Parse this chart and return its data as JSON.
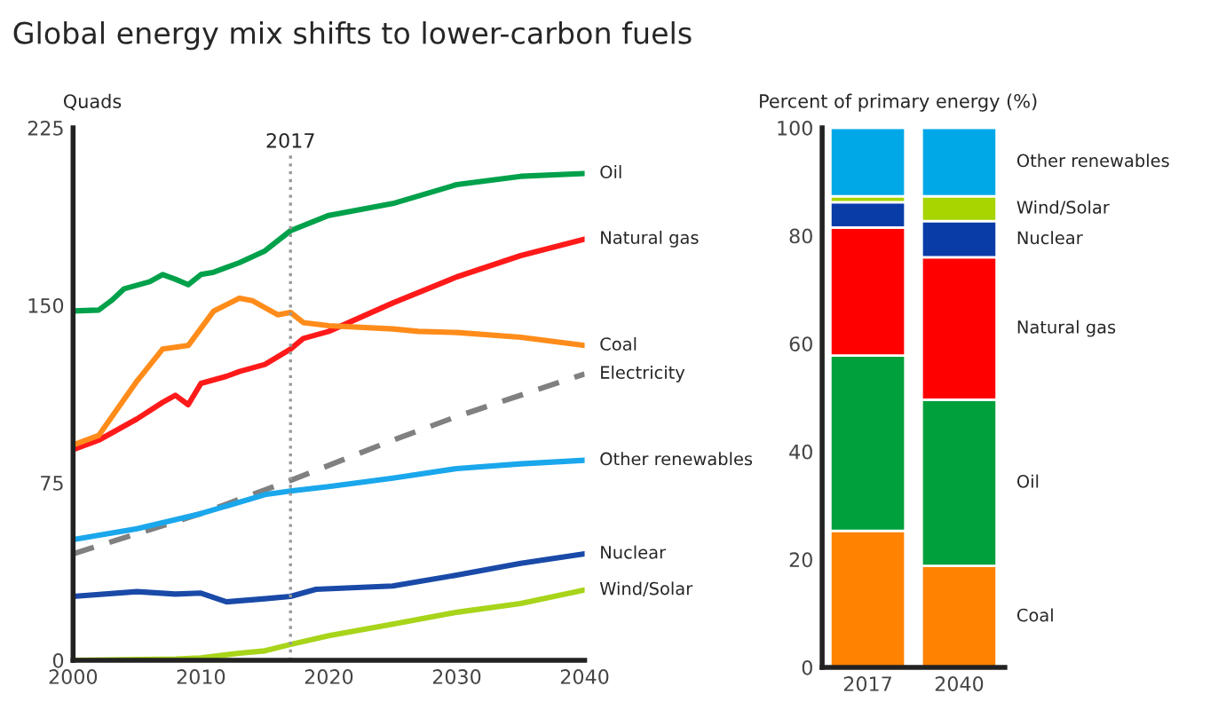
{
  "chart_data": [
    {
      "type": "line",
      "title": "Global energy mix shifts to lower-carbon fuels",
      "ylabel": "Quads",
      "xlim": [
        2000,
        2040
      ],
      "xticks": [
        2000,
        2010,
        2020,
        2030,
        2040
      ],
      "ylim": [
        0,
        225
      ],
      "yticks": [
        0,
        75,
        150,
        225
      ],
      "grid": false,
      "legend": false,
      "line_style": "solid",
      "ref_lines": [
        {
          "axis": "x",
          "value": 2017,
          "label": "2017",
          "color": "#999999",
          "line_style": "dotted"
        }
      ],
      "series": [
        {
          "name": "Oil",
          "color": "#00a14b",
          "x": [
            2000,
            2002,
            2003,
            2004,
            2006,
            2007,
            2008,
            2009,
            2010,
            2011,
            2013,
            2015,
            2017,
            2020,
            2025,
            2030,
            2035,
            2040
          ],
          "values": [
            147.6,
            148,
            152,
            157,
            160,
            163,
            161,
            158.7,
            163,
            164,
            168,
            173,
            181.5,
            188,
            193,
            201,
            204.5,
            205.7
          ]
        },
        {
          "name": "Natural gas",
          "color": "#ff1a1a",
          "x": [
            2000,
            2002,
            2005,
            2007,
            2008,
            2009,
            2010,
            2012,
            2013,
            2015,
            2017,
            2018,
            2020,
            2025,
            2030,
            2035,
            2040
          ],
          "values": [
            89,
            93,
            102,
            109,
            112,
            108,
            117,
            120,
            122,
            125,
            131.5,
            136,
            139,
            151,
            162,
            171,
            178
          ]
        },
        {
          "name": "Coal",
          "color": "#ff8c1a",
          "x": [
            2000,
            2002,
            2005,
            2007,
            2009,
            2011,
            2013,
            2014,
            2016,
            2017,
            2018,
            2020,
            2025,
            2027,
            2030,
            2035,
            2040
          ],
          "values": [
            91,
            95,
            118,
            131.5,
            133,
            147.6,
            153,
            152,
            146,
            147,
            142.7,
            141.4,
            140,
            139,
            138.5,
            136.5,
            133
          ]
        },
        {
          "name": "Electricity",
          "color": "#808080",
          "line_style": "dashed",
          "x": [
            2000,
            2010,
            2017,
            2025,
            2030,
            2040
          ],
          "values": [
            45,
            62,
            76,
            93,
            103,
            121
          ]
        },
        {
          "name": "Other renewables",
          "color": "#1aa7ec",
          "x": [
            2000,
            2005,
            2010,
            2015,
            2017,
            2020,
            2025,
            2030,
            2035,
            2040
          ],
          "values": [
            51,
            55.6,
            62,
            70,
            71.5,
            73.4,
            77,
            81,
            83,
            84.5
          ]
        },
        {
          "name": "Nuclear",
          "color": "#1a4aa8",
          "x": [
            2000,
            2005,
            2008,
            2010,
            2012,
            2015,
            2017,
            2019,
            2025,
            2030,
            2035,
            2040
          ],
          "values": [
            27,
            29,
            28,
            28.4,
            24.7,
            26,
            27,
            30,
            31.4,
            36,
            41,
            45
          ]
        },
        {
          "name": "Wind/Solar",
          "color": "#a8d41a",
          "x": [
            2000,
            2008,
            2010,
            2013,
            2015,
            2017,
            2020,
            2025,
            2030,
            2035,
            2040
          ],
          "values": [
            0,
            0.5,
            1,
            3,
            4,
            6.7,
            10.4,
            15.3,
            20.3,
            24,
            29.7
          ]
        }
      ]
    },
    {
      "type": "bar",
      "stacked": true,
      "ylabel": "Percent of primary energy (%)",
      "categories": [
        "2017",
        "2040"
      ],
      "ylim": [
        0,
        100
      ],
      "yticks": [
        0,
        20,
        40,
        60,
        80,
        100
      ],
      "grid": false,
      "legend": false,
      "series": [
        {
          "name": "Coal",
          "color": "#ff8200",
          "values": [
            25.3,
            18.8
          ]
        },
        {
          "name": "Oil",
          "color": "#00a03c",
          "values": [
            32.5,
            30.8
          ]
        },
        {
          "name": "Natural gas",
          "color": "#ff0000",
          "values": [
            23.7,
            26.4
          ]
        },
        {
          "name": "Nuclear",
          "color": "#0a3ca8",
          "values": [
            4.7,
            6.7
          ]
        },
        {
          "name": "Wind/Solar",
          "color": "#a8d400",
          "values": [
            1.1,
            4.6
          ]
        },
        {
          "name": "Other renewables",
          "color": "#00a8e8",
          "values": [
            12.7,
            12.7
          ]
        }
      ]
    }
  ]
}
